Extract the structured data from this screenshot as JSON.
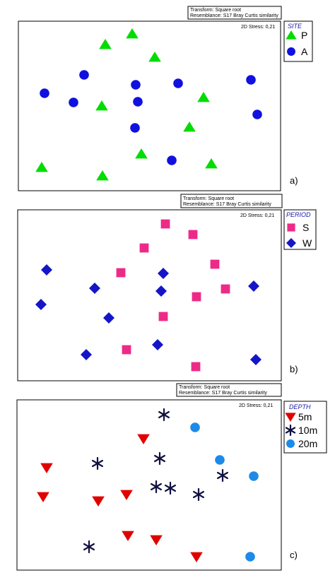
{
  "chart_data": [
    {
      "type": "scatter",
      "panel_label": "a)",
      "transform": "Transform: Square root",
      "resemblance": "Resemblance: S17 Bray Curtis similarity",
      "stress": "2D Stress: 0,21",
      "legend_title": "SITE",
      "series": [
        {
          "name": "P",
          "marker": "triangle",
          "color": "#00dd00",
          "points": [
            [
              187,
              48
            ],
            [
              149,
              63
            ],
            [
              219,
              81
            ],
            [
              144,
              150
            ],
            [
              288,
              138
            ],
            [
              268,
              180
            ],
            [
              200,
              218
            ],
            [
              299,
              232
            ],
            [
              59,
              237
            ],
            [
              145,
              249
            ]
          ]
        },
        {
          "name": "A",
          "marker": "circle",
          "color": "#1010e0",
          "points": [
            [
              119,
              106
            ],
            [
              63,
              132
            ],
            [
              104,
              145
            ],
            [
              192,
              120
            ],
            [
              252,
              118
            ],
            [
              195,
              144
            ],
            [
              355,
              113
            ],
            [
              364,
              162
            ],
            [
              191,
              181
            ],
            [
              243,
              227
            ]
          ]
        }
      ]
    },
    {
      "type": "scatter",
      "panel_label": "b)",
      "transform": "Transform: Square root",
      "resemblance": "Resemblance: S17 Bray Curtis similarity",
      "stress": "2D Stress: 0,21",
      "legend_title": "PERIOD",
      "series": [
        {
          "name": "S",
          "marker": "square",
          "color": "#ee2a88",
          "points": [
            [
              234,
              317
            ],
            [
              273,
              332
            ],
            [
              204,
              351
            ],
            [
              171,
              386
            ],
            [
              304,
              374
            ],
            [
              319,
              409
            ],
            [
              278,
              420
            ],
            [
              231,
              448
            ],
            [
              179,
              495
            ],
            [
              277,
              519
            ]
          ]
        },
        {
          "name": "W",
          "marker": "diamond",
          "color": "#1515c8",
          "points": [
            [
              66,
              382
            ],
            [
              231,
              387
            ],
            [
              134,
              408
            ],
            [
              228,
              412
            ],
            [
              359,
              405
            ],
            [
              58,
              431
            ],
            [
              154,
              450
            ],
            [
              223,
              488
            ],
            [
              122,
              502
            ],
            [
              362,
              509
            ]
          ]
        }
      ]
    },
    {
      "type": "scatter",
      "panel_label": "c)",
      "transform": "Transform: Square root",
      "resemblance": "Resemblance: S17 Bray Curtis similarity",
      "stress": "2D Stress: 0,21",
      "legend_title": "DEPTH",
      "series": [
        {
          "name": "5m",
          "marker": "triangle-down",
          "color": "#e00000",
          "points": [
            [
              203,
              621
            ],
            [
              66,
              662
            ],
            [
              61,
              703
            ],
            [
              179,
              700
            ],
            [
              139,
              709
            ],
            [
              181,
              758
            ],
            [
              221,
              764
            ],
            [
              278,
              788
            ]
          ]
        },
        {
          "name": "10m",
          "marker": "asterisk",
          "color": "#101040",
          "points": [
            [
              232,
              587
            ],
            [
              226,
              649
            ],
            [
              138,
              656
            ],
            [
              315,
              673
            ],
            [
              221,
              689
            ],
            [
              241,
              691
            ],
            [
              281,
              700
            ],
            [
              126,
              774
            ]
          ]
        },
        {
          "name": "20m",
          "marker": "circle",
          "color": "#1c8ae8",
          "points": [
            [
              276,
              605
            ],
            [
              311,
              651
            ],
            [
              359,
              674
            ],
            [
              354,
              788
            ]
          ]
        }
      ]
    }
  ]
}
